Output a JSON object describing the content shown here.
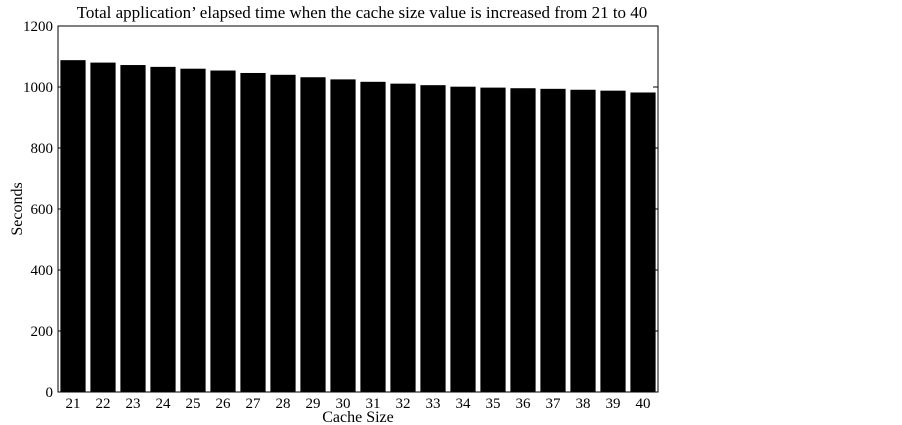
{
  "chart_data": {
    "type": "bar",
    "title": "Total application’ elapsed time when the cache size value is increased from 21 to 40",
    "xlabel": "Cache Size",
    "ylabel": "Seconds",
    "categories": [
      "21",
      "22",
      "23",
      "24",
      "25",
      "26",
      "27",
      "28",
      "29",
      "30",
      "31",
      "32",
      "33",
      "34",
      "35",
      "36",
      "37",
      "38",
      "39",
      "40"
    ],
    "values": [
      1088,
      1080,
      1072,
      1066,
      1060,
      1054,
      1046,
      1040,
      1032,
      1025,
      1017,
      1011,
      1006,
      1001,
      998,
      996,
      994,
      991,
      988,
      982
    ],
    "ylim": [
      0,
      1200
    ],
    "yticks": [
      "0",
      "200",
      "400",
      "600",
      "800",
      "1000",
      "1200"
    ],
    "grid": false,
    "bar_color": "#000000"
  }
}
